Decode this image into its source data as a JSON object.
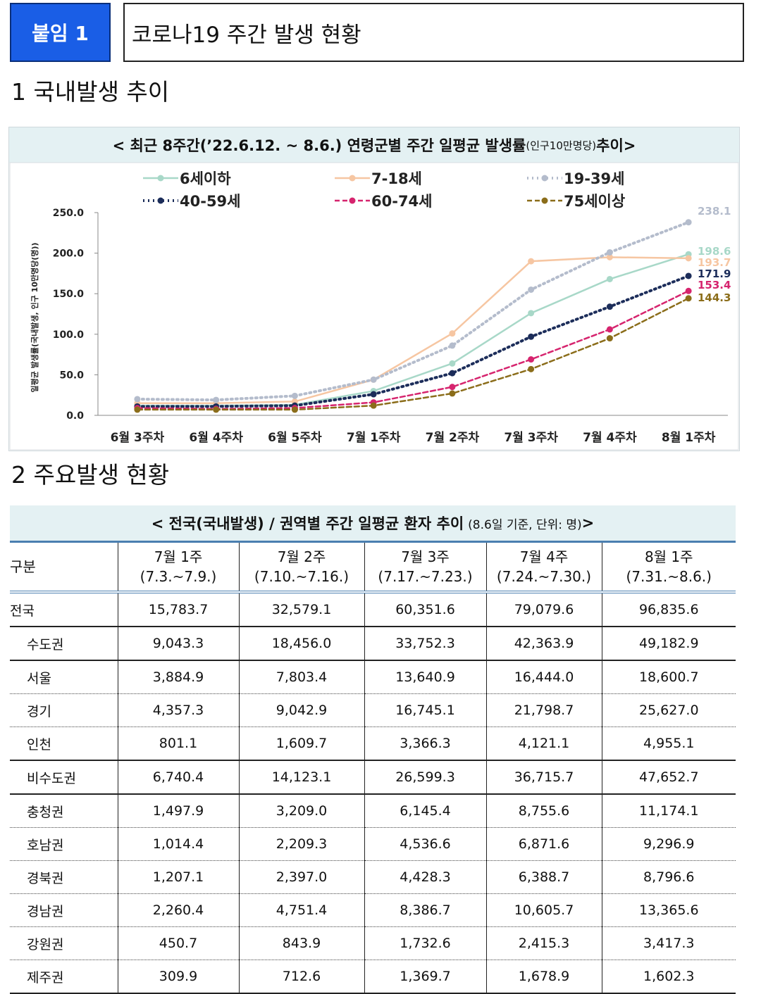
{
  "header": {
    "badge": "붙임 1",
    "title": "코로나19 주간 발생 현황"
  },
  "section1": {
    "title": "1  국내발생 추이"
  },
  "section2": {
    "title": "2  주요발생 현황"
  },
  "chart_data": {
    "type": "line",
    "title_main": "< 최근 8주간(’22.6.12. ~ 8.6.) 연령군별 주간 일평균 발생률",
    "title_unit": "(인구10만명당)",
    "title_end": " 추이>",
    "ylabel": "일평균 발생률(국내발생, 인구 10만명당(명))",
    "ylim": [
      0,
      250
    ],
    "yticks": [
      "0.0",
      "50.0",
      "100.0",
      "150.0",
      "200.0",
      "250.0"
    ],
    "categories": [
      "6월 3주차",
      "6월 4주차",
      "6월 5주차",
      "7월 1주차",
      "7월 2주차",
      "7월 3주차",
      "7월 4주차",
      "8월 1주차"
    ],
    "series": [
      {
        "name": "6세이하",
        "color": "#a8d8c8",
        "style": "solid",
        "values": [
          12,
          12,
          13,
          30,
          64,
          126,
          168,
          198.6
        ],
        "end_label": "198.6"
      },
      {
        "name": "7-18세",
        "color": "#f6c6a2",
        "style": "solid",
        "values": [
          15,
          15,
          17,
          44,
          101,
          190,
          195,
          193.7
        ],
        "end_label": "193.7"
      },
      {
        "name": "19-39세",
        "color": "#b4bccc",
        "style": "dotted",
        "values": [
          20,
          19,
          24,
          44,
          86,
          155,
          201,
          238.1
        ],
        "end_label": "238.1"
      },
      {
        "name": "40-59세",
        "color": "#1c2d5a",
        "style": "dotted",
        "values": [
          11,
          11,
          12,
          26,
          52,
          97,
          134,
          171.9
        ],
        "end_label": "171.9"
      },
      {
        "name": "60-74세",
        "color": "#d6246e",
        "style": "dashed",
        "values": [
          9,
          8,
          9,
          16,
          35,
          69,
          106,
          153.4
        ],
        "end_label": "153.4"
      },
      {
        "name": "75세이상",
        "color": "#8b6d1a",
        "style": "dashed",
        "values": [
          7,
          7,
          7,
          12,
          27,
          57,
          95,
          144.3
        ],
        "end_label": "144.3"
      }
    ]
  },
  "table": {
    "title": "< 전국(국내발생) / 권역별 주간 일평균 환자 추이",
    "note": "(8.6일 기준, 단위: 명)",
    "title_end": " >",
    "columns": [
      {
        "line1": "구분",
        "line2": ""
      },
      {
        "line1": "7월 1주",
        "line2": "(7.3.~7.9.)"
      },
      {
        "line1": "7월 2주",
        "line2": "(7.10.~7.16.)"
      },
      {
        "line1": "7월 3주",
        "line2": "(7.17.~7.23.)"
      },
      {
        "line1": "7월 4주",
        "line2": "(7.24.~7.30.)"
      },
      {
        "line1": "8월 1주",
        "line2": "(7.31.~8.6.)"
      }
    ],
    "rows": [
      {
        "region": "전국",
        "level": 0,
        "values": [
          "15,783.7",
          "32,579.1",
          "60,351.6",
          "79,079.6",
          "96,835.6"
        ]
      },
      {
        "region": "수도권",
        "level": 1,
        "values": [
          "9,043.3",
          "18,456.0",
          "33,752.3",
          "42,363.9",
          "49,182.9"
        ]
      },
      {
        "region": "서울",
        "level": 1,
        "values": [
          "3,884.9",
          "7,803.4",
          "13,640.9",
          "16,444.0",
          "18,600.7"
        ]
      },
      {
        "region": "경기",
        "level": 1,
        "values": [
          "4,357.3",
          "9,042.9",
          "16,745.1",
          "21,798.7",
          "25,627.0"
        ]
      },
      {
        "region": "인천",
        "level": 1,
        "values": [
          "801.1",
          "1,609.7",
          "3,366.3",
          "4,121.1",
          "4,955.1"
        ]
      },
      {
        "region": "비수도권",
        "level": 1,
        "values": [
          "6,740.4",
          "14,123.1",
          "26,599.3",
          "36,715.7",
          "47,652.7"
        ]
      },
      {
        "region": "충청권",
        "level": 1,
        "values": [
          "1,497.9",
          "3,209.0",
          "6,145.4",
          "8,755.6",
          "11,174.1"
        ]
      },
      {
        "region": "호남권",
        "level": 1,
        "values": [
          "1,014.4",
          "2,209.3",
          "4,536.6",
          "6,871.6",
          "9,296.9"
        ]
      },
      {
        "region": "경북권",
        "level": 1,
        "values": [
          "1,207.1",
          "2,397.0",
          "4,428.3",
          "6,388.7",
          "8,796.6"
        ]
      },
      {
        "region": "경남권",
        "level": 1,
        "values": [
          "2,260.4",
          "4,751.4",
          "8,386.7",
          "10,605.7",
          "13,365.6"
        ]
      },
      {
        "region": "강원권",
        "level": 1,
        "values": [
          "450.7",
          "843.9",
          "1,732.6",
          "2,415.3",
          "3,417.3"
        ]
      },
      {
        "region": "제주권",
        "level": 1,
        "values": [
          "309.9",
          "712.6",
          "1,369.7",
          "1,678.9",
          "1,602.3"
        ]
      }
    ]
  }
}
